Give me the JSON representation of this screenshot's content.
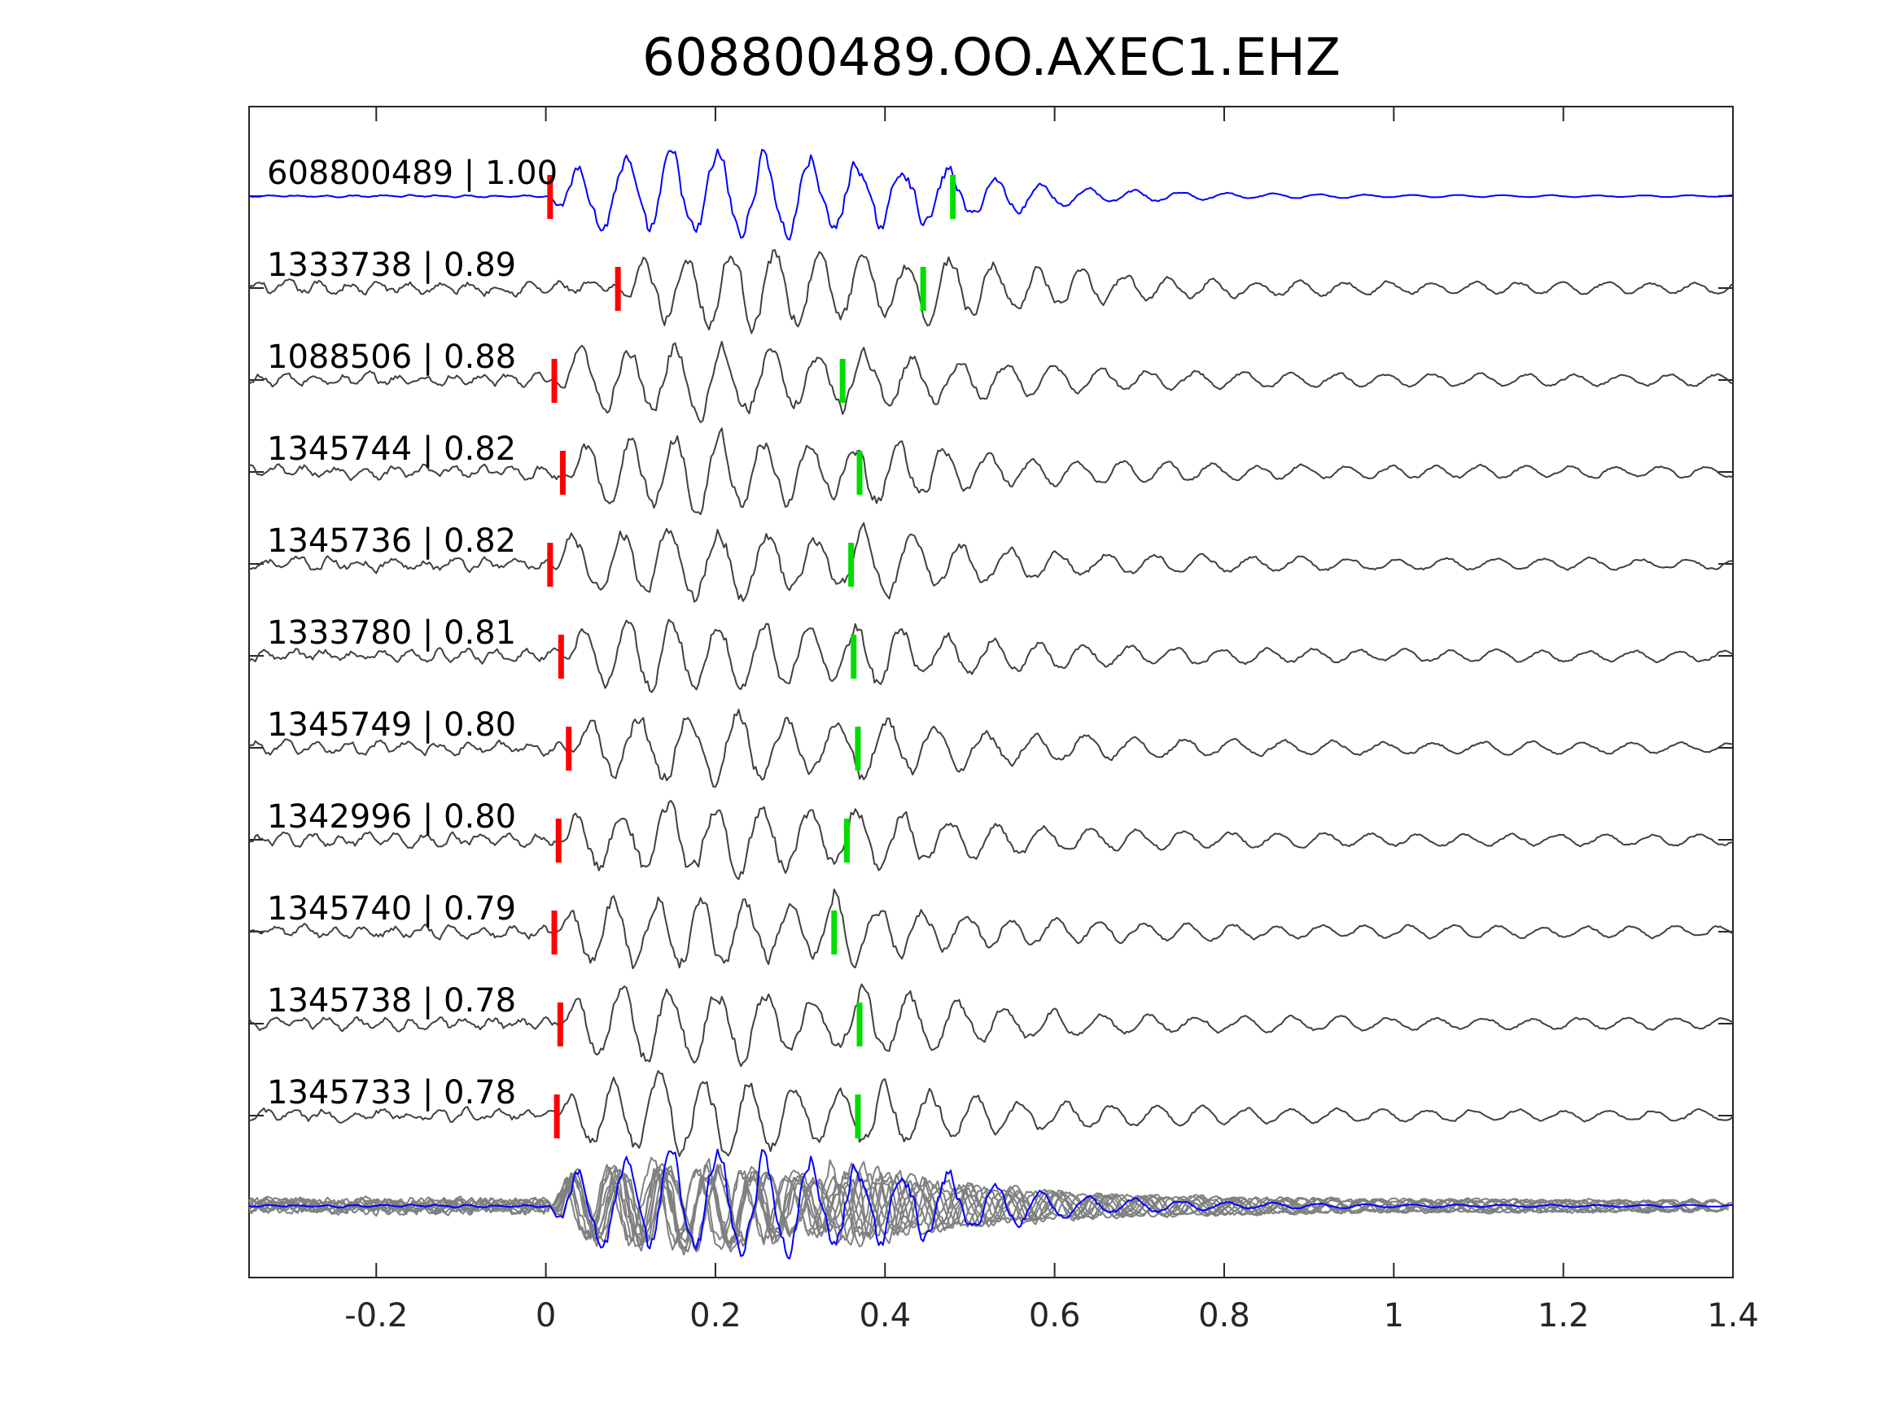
{
  "chart_data": {
    "type": "line",
    "title": "608800489.OO.AXEC1.EHZ",
    "xlabel": "",
    "ylabel": "",
    "xlim": [
      -0.35,
      1.4
    ],
    "xticks": [
      -0.2,
      0,
      0.2,
      0.4,
      0.6,
      0.8,
      1,
      1.2,
      1.4
    ],
    "xtick_labels": [
      "-0.2",
      "0",
      "0.2",
      "0.4",
      "0.6",
      "0.8",
      "1",
      "1.2",
      "1.4"
    ],
    "grid": false,
    "colors": {
      "reference": "#0000ff",
      "templates": "#404040",
      "stack_templates": "#808080",
      "p_pick": "#ff0000",
      "s_pick": "#00dd00",
      "axes": "#262626"
    },
    "series": [
      {
        "label": "608800489 | 1.00",
        "p_pick": 0.005,
        "s_pick": 0.48,
        "reference": true
      },
      {
        "label": "1333738 | 0.89",
        "p_pick": 0.085,
        "s_pick": 0.445
      },
      {
        "label": "1088506 | 0.88",
        "p_pick": 0.01,
        "s_pick": 0.35
      },
      {
        "label": "1345744 | 0.82",
        "p_pick": 0.02,
        "s_pick": 0.37
      },
      {
        "label": "1345736 | 0.82",
        "p_pick": 0.005,
        "s_pick": 0.36
      },
      {
        "label": "1333780 | 0.81",
        "p_pick": 0.018,
        "s_pick": 0.363
      },
      {
        "label": "1345749 | 0.80",
        "p_pick": 0.027,
        "s_pick": 0.368
      },
      {
        "label": "1342996 | 0.80",
        "p_pick": 0.015,
        "s_pick": 0.355
      },
      {
        "label": "1345740 | 0.79",
        "p_pick": 0.01,
        "s_pick": 0.34
      },
      {
        "label": "1345738 | 0.78",
        "p_pick": 0.017,
        "s_pick": 0.37
      },
      {
        "label": "1345733 | 0.78",
        "p_pick": 0.013,
        "s_pick": 0.368
      }
    ]
  }
}
